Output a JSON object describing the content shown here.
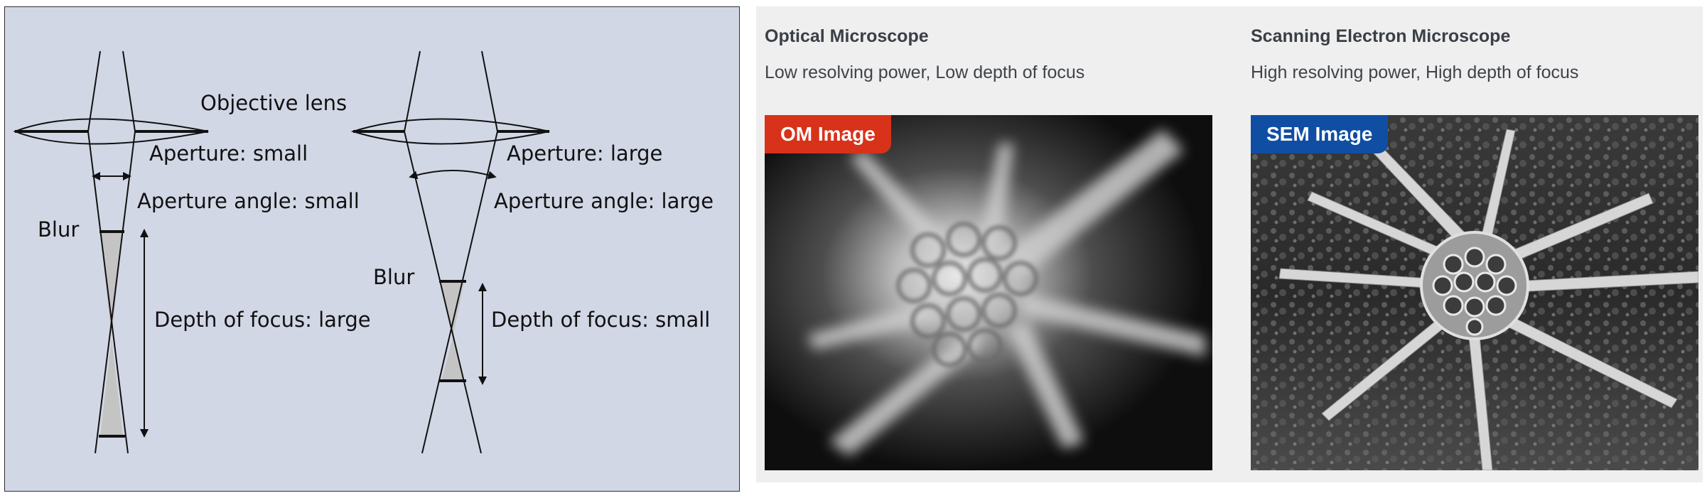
{
  "diagram": {
    "objective_lens": "Objective lens",
    "left": {
      "aperture": "Aperture: small",
      "aperture_angle": "Aperture angle: small",
      "blur": "Blur",
      "depth_of_focus": "Depth of focus: large"
    },
    "right": {
      "aperture": "Aperture: large",
      "aperture_angle": "Aperture angle: large",
      "blur": "Blur",
      "depth_of_focus": "Depth of focus: small"
    },
    "colors": {
      "background": "#d2d7e6",
      "blur_fill": "#c4c4c4",
      "line": "#111111"
    }
  },
  "comparison": {
    "optical": {
      "title": "Optical Microscope",
      "subtitle": "Low resolving power, Low depth of focus",
      "badge": "OM Image",
      "badge_color": "#d8321a"
    },
    "sem": {
      "title": "Scanning Electron Microscope",
      "subtitle": "High resolving power, High depth of focus",
      "badge": "SEM Image",
      "badge_color": "#0f4ea3"
    }
  }
}
